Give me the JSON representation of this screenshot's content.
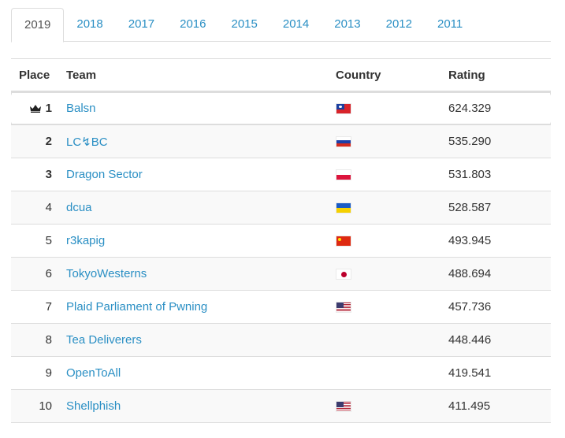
{
  "tabs": [
    {
      "label": "2019",
      "active": true
    },
    {
      "label": "2018"
    },
    {
      "label": "2017"
    },
    {
      "label": "2016"
    },
    {
      "label": "2015"
    },
    {
      "label": "2014"
    },
    {
      "label": "2013"
    },
    {
      "label": "2012"
    },
    {
      "label": "2011"
    }
  ],
  "table": {
    "headers": {
      "place": "Place",
      "team": "Team",
      "country": "Country",
      "rating": "Rating"
    },
    "rows": [
      {
        "place": "1",
        "team": "Balsn",
        "flag": "flag-taiwan-icon",
        "rating": "624.329"
      },
      {
        "place": "2",
        "team": "LC↯BC",
        "flag": "flag-russia-icon",
        "rating": "535.290"
      },
      {
        "place": "3",
        "team": "Dragon Sector",
        "flag": "flag-poland-icon",
        "rating": "531.803"
      },
      {
        "place": "4",
        "team": "dcua",
        "flag": "flag-ukraine-icon",
        "rating": "528.587"
      },
      {
        "place": "5",
        "team": "r3kapig",
        "flag": "flag-china-icon",
        "rating": "493.945"
      },
      {
        "place": "6",
        "team": "TokyoWesterns",
        "flag": "flag-japan-icon",
        "rating": "488.694"
      },
      {
        "place": "7",
        "team": "Plaid Parliament of Pwning",
        "flag": "flag-usa-icon",
        "rating": "457.736"
      },
      {
        "place": "8",
        "team": "Tea Deliverers",
        "flag": "",
        "rating": "448.446"
      },
      {
        "place": "9",
        "team": "OpenToAll",
        "flag": "",
        "rating": "419.541"
      },
      {
        "place": "10",
        "team": "Shellphish",
        "flag": "flag-usa-icon",
        "rating": "411.495"
      }
    ]
  },
  "colors": {
    "link": "#2a8fc4",
    "border": "#dddddd",
    "stripe": "#f9f9f9"
  }
}
